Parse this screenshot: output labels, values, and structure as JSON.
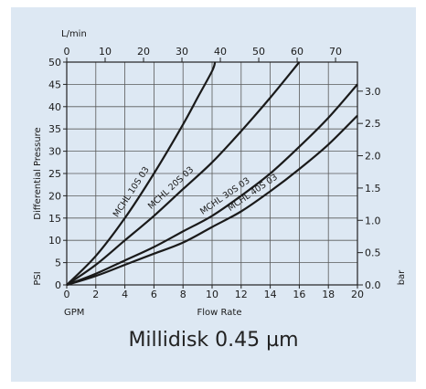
{
  "caption": "Millidisk 0.45 µm",
  "chart_data": {
    "type": "line",
    "title": "Millidisk 0.45 µm",
    "xlabel": "Flow Rate",
    "x_unit": "GPM",
    "x_range": [
      0,
      20
    ],
    "x_ticks": [
      0,
      2,
      4,
      6,
      8,
      10,
      12,
      14,
      16,
      18,
      20
    ],
    "x_top_unit": "L/min",
    "x_top_range": [
      0,
      75.7
    ],
    "x_top_ticks": [
      0,
      10,
      20,
      30,
      40,
      50,
      60,
      70
    ],
    "ylabel": "Differential Pressure",
    "y_unit": "PSI",
    "y_range": [
      0,
      50
    ],
    "y_ticks": [
      0,
      5,
      10,
      15,
      20,
      25,
      30,
      35,
      40,
      45,
      50
    ],
    "y_right_unit": "bar",
    "y_right_range": [
      0,
      3.45
    ],
    "y_right_ticks": [
      "0.0",
      "0.5",
      "1.0",
      "1.5",
      "2.0",
      "2.5",
      "3.0"
    ],
    "grid": true,
    "series": [
      {
        "name": "MCHL 10S 03",
        "x": [
          0,
          2,
          4,
          6,
          8,
          9,
          10,
          10.2
        ],
        "y": [
          0,
          6.5,
          15,
          25,
          36,
          42,
          48,
          50
        ]
      },
      {
        "name": "MCHL 20S 03",
        "x": [
          0,
          2,
          4,
          6,
          8,
          10,
          12,
          14,
          16
        ],
        "y": [
          0,
          4.5,
          10,
          15.5,
          21.5,
          27.5,
          34.5,
          42,
          50
        ]
      },
      {
        "name": "MCHL 30S 03",
        "x": [
          0,
          2,
          4,
          6,
          8,
          10,
          12,
          14,
          16,
          18,
          20
        ],
        "y": [
          0,
          2.5,
          5.5,
          8.5,
          12,
          15.5,
          20,
          25,
          31,
          37.5,
          45
        ]
      },
      {
        "name": "MCHL 40S 03",
        "x": [
          0,
          2,
          4,
          6,
          8,
          10,
          12,
          14,
          16,
          18,
          20
        ],
        "y": [
          0,
          2,
          4.5,
          7,
          9.5,
          13,
          16.5,
          21,
          26,
          31.5,
          38
        ]
      }
    ]
  }
}
